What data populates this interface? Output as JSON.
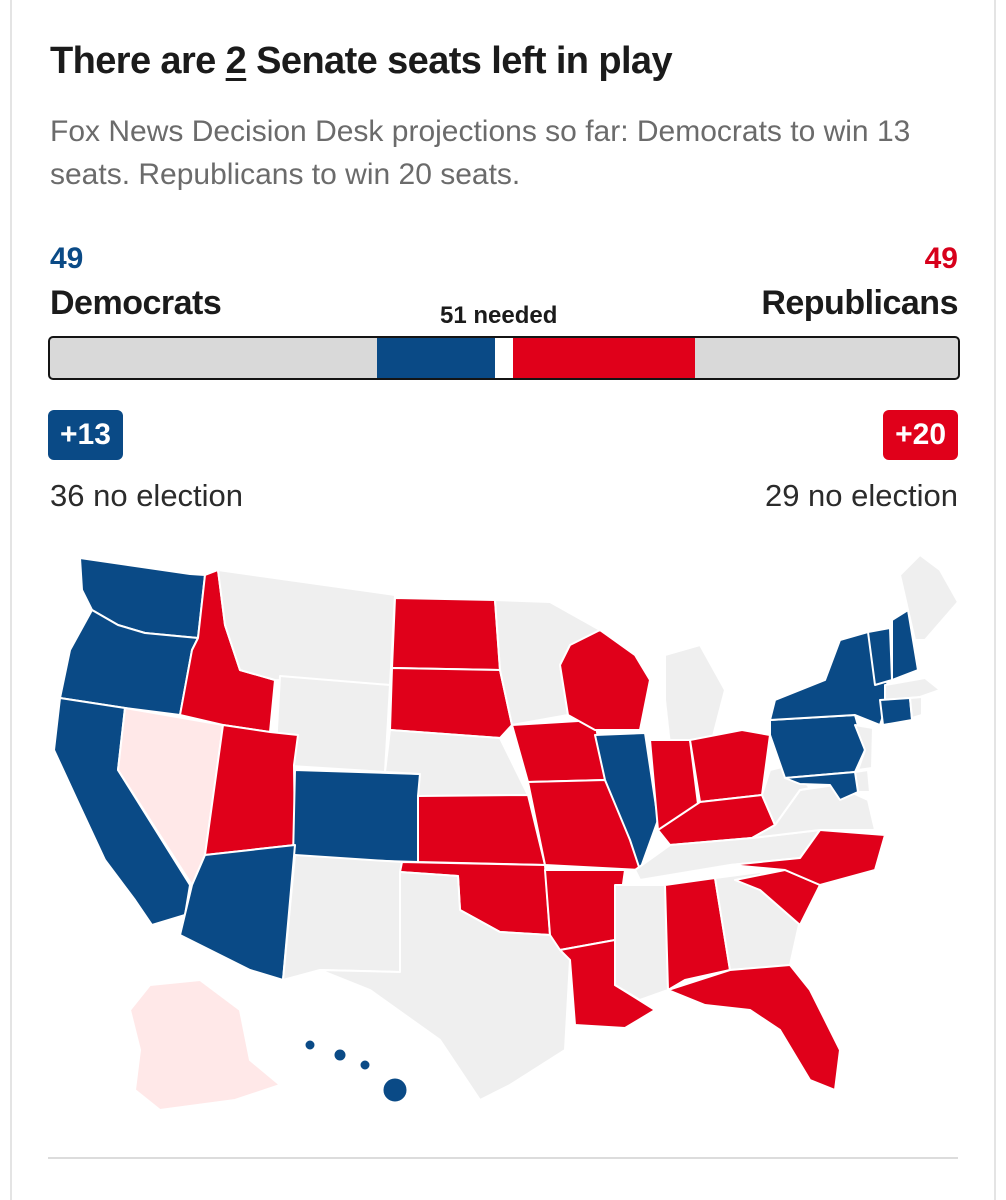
{
  "header": {
    "title_prefix": "There are ",
    "title_number": "2",
    "title_suffix": " Senate seats left in play",
    "subtitle": "Fox News Decision Desk projections so far: Democrats to win 13 seats. Republicans to win 20 seats."
  },
  "balance": {
    "dem_seats": "49",
    "dem_label": "Democrats",
    "rep_seats": "49",
    "rep_label": "Republicans",
    "needed_label": "51 needed",
    "dem_gain": "+13",
    "rep_gain": "+20",
    "dem_no_election": "36 no election",
    "rep_no_election": "29 no election",
    "bar": {
      "total": 100,
      "dem_no_election": 36,
      "dem_won": 13,
      "undecided": 2,
      "rep_won": 20,
      "rep_no_election": 29
    }
  },
  "colors": {
    "dem": "#0a4a86",
    "rep": "#e0001a",
    "in_play": "#ffe8e8",
    "no_race": "#efefef",
    "bar_bg": "#d9d9d9"
  },
  "map": {
    "legend_keys": [
      "dem",
      "rep",
      "in_play",
      "no_race"
    ],
    "states": {
      "WA": "dem",
      "OR": "dem",
      "CA": "dem",
      "NV": "in_play",
      "ID": "rep",
      "UT": "rep",
      "AZ": "dem",
      "MT": "no_race",
      "WY": "no_race",
      "CO": "dem",
      "NM": "no_race",
      "ND": "rep",
      "SD": "rep",
      "NE": "no_race",
      "KS": "rep",
      "OK": "rep",
      "TX": "no_race",
      "MN": "no_race",
      "IA": "rep",
      "MO": "rep",
      "AR": "rep",
      "LA": "rep",
      "WI": "rep",
      "IL": "dem",
      "MI": "no_race",
      "IN": "rep",
      "OH": "rep",
      "KY": "rep",
      "TN": "no_race",
      "MS": "no_race",
      "AL": "rep",
      "GA": "no_race",
      "FL": "rep",
      "SC": "rep",
      "NC": "rep",
      "VA": "no_race",
      "WV": "no_race",
      "PA": "dem",
      "NY": "dem",
      "VT": "dem",
      "NH": "dem",
      "ME": "no_race",
      "MA": "no_race",
      "CT": "dem",
      "RI": "no_race",
      "NJ": "no_race",
      "DE": "no_race",
      "MD": "dem",
      "AK": "in_play",
      "HI": "dem"
    }
  }
}
